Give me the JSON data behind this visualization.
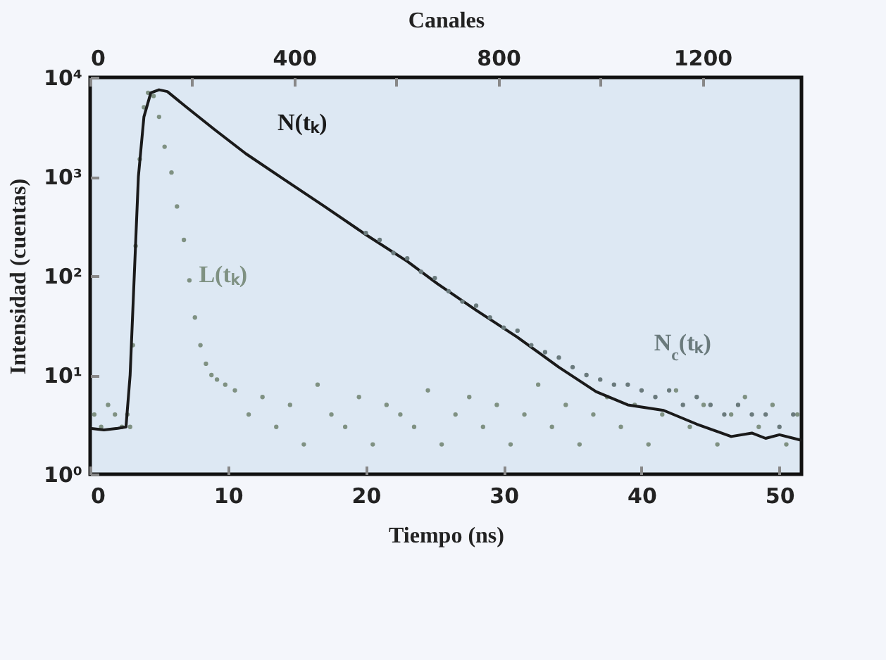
{
  "chart_data": {
    "type": "line",
    "xlabel": "Tiempo (ns)",
    "x2label": "Canales",
    "ylabel": "Intensidad (cuentas)",
    "log": "y",
    "xlim": [
      0,
      51.6
    ],
    "xticks": [
      0,
      10,
      20,
      30,
      40,
      50
    ],
    "x2lim": [
      0,
      1394
    ],
    "x2ticks": [
      0,
      {
        "value": 200,
        "label": null
      },
      400,
      {
        "value": 600,
        "label": null
      },
      800,
      {
        "value": 1000,
        "label": null
      },
      1200
    ],
    "ylim": [
      1,
      10000
    ],
    "yticks": [
      {
        "value": 1,
        "label": "10⁰"
      },
      {
        "value": 10,
        "label": "10¹"
      },
      {
        "value": 100,
        "label": "10²"
      },
      {
        "value": 1000,
        "label": "10³"
      },
      {
        "value": 10000,
        "label": "10⁴"
      }
    ],
    "grid": false,
    "legend": false,
    "series": [
      {
        "name": "L(tₖ)",
        "type": "scatter",
        "marker": "circle",
        "color": "#7f9182",
        "x": [
          0.3,
          0.8,
          1.3,
          1.8,
          2.3,
          2.7,
          2.9,
          3.1,
          3.3,
          3.6,
          3.9,
          4.2,
          4.6,
          5.0,
          5.4,
          5.9,
          6.3,
          6.8,
          7.2,
          7.6,
          8.0,
          8.4,
          8.8,
          9.2,
          9.8,
          10.5,
          11.5,
          12.5,
          13.5,
          14.5,
          15.5,
          16.5,
          17.5,
          18.5,
          19.5,
          20.5,
          21.5,
          22.5,
          23.5,
          24.5,
          25.5,
          26.5,
          27.5,
          28.5,
          29.5,
          30.5,
          31.5,
          32.5,
          33.5,
          34.5,
          35.5,
          36.5,
          37.5,
          38.5,
          39.5,
          40.5,
          41.5,
          42.5,
          43.5,
          44.5,
          45.5,
          46.5,
          47.5,
          48.5,
          49.5,
          50.5,
          51.3
        ],
        "values": [
          4,
          3,
          5,
          4,
          3,
          4,
          3,
          20,
          200,
          1500,
          5000,
          7000,
          6500,
          4000,
          2000,
          1100,
          500,
          230,
          90,
          38,
          20,
          13,
          10,
          9,
          8,
          7,
          4,
          6,
          3,
          5,
          2,
          8,
          4,
          3,
          6,
          2,
          5,
          4,
          3,
          7,
          2,
          4,
          6,
          3,
          5,
          2,
          4,
          8,
          3,
          5,
          2,
          4,
          6,
          3,
          5,
          2,
          4,
          7,
          3,
          5,
          2,
          4,
          6,
          3,
          5,
          2,
          4
        ]
      },
      {
        "name": "N(tₖ)",
        "type": "line",
        "marker": "none",
        "color": "#1a1a1a",
        "x": [
          0,
          1,
          2,
          2.6,
          2.9,
          3.2,
          3.5,
          3.9,
          4.4,
          5.0,
          5.6,
          7,
          9,
          11.3,
          14,
          17,
          20,
          23,
          25.2,
          28,
          31,
          34,
          36.7,
          39,
          41.6,
          44,
          46.5,
          48,
          49,
          50,
          51.6
        ],
        "values": [
          2.9,
          2.8,
          2.9,
          3.0,
          10,
          100,
          1000,
          4000,
          7000,
          7500,
          7200,
          5000,
          3000,
          1700,
          950,
          500,
          260,
          140,
          83,
          45,
          24,
          12,
          6.8,
          5,
          4.4,
          3.2,
          2.4,
          2.6,
          2.3,
          2.5,
          2.2
        ]
      },
      {
        "name": "N$_{c}$(tₖ)",
        "type": "scatter",
        "marker": "circle",
        "color": "#6a7a7c",
        "x": [
          20,
          21,
          22,
          23,
          24,
          25,
          26,
          27,
          28,
          29,
          30,
          31,
          32,
          33,
          34,
          35,
          36,
          37,
          38,
          39,
          40,
          41,
          42,
          43,
          44,
          45,
          46,
          47,
          48,
          49,
          50,
          51
        ],
        "values": [
          270,
          230,
          170,
          150,
          110,
          95,
          70,
          55,
          50,
          38,
          30,
          28,
          20,
          17,
          15,
          12,
          10,
          9,
          8,
          8,
          7,
          6,
          7,
          5,
          6,
          5,
          4,
          5,
          4,
          4,
          3,
          4
        ]
      }
    ]
  }
}
